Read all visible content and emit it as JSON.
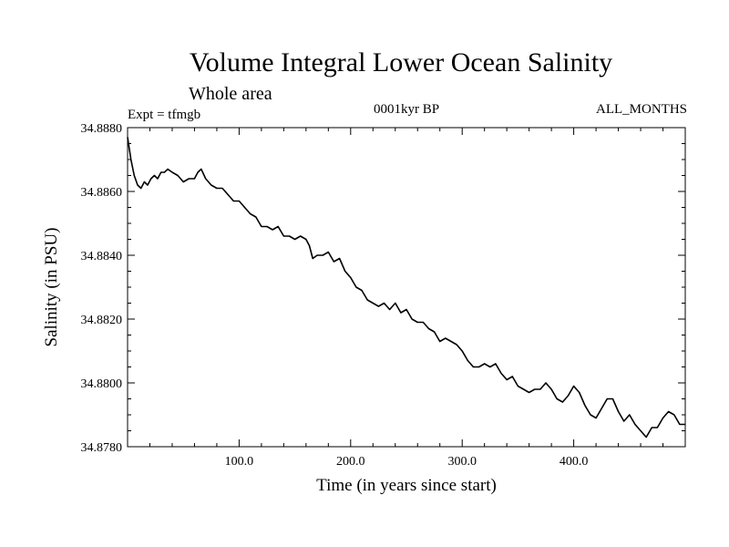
{
  "chart_data": {
    "type": "line",
    "title": "Volume Integral Lower Ocean Salinity",
    "subtitle": "Whole area",
    "left_label": "Expt = tfmgb",
    "center_label": "0001kyr BP",
    "right_label": "ALL_MONTHS",
    "xlabel": "Time (in years since start)",
    "ylabel": "Salinity (in PSU)",
    "xlim": [
      0,
      500
    ],
    "ylim": [
      34.878,
      34.888
    ],
    "x_ticks": [
      100,
      200,
      300,
      400
    ],
    "x_tick_labels": [
      "100.0",
      "200.0",
      "300.0",
      "400.0"
    ],
    "y_ticks": [
      34.878,
      34.88,
      34.882,
      34.884,
      34.886,
      34.888
    ],
    "y_tick_labels": [
      "34.8780",
      "34.8800",
      "34.8820",
      "34.8840",
      "34.8860",
      "34.8880"
    ],
    "grid": false,
    "series": [
      {
        "x": [
          0,
          3,
          6,
          9,
          12,
          15,
          18,
          21,
          24,
          27,
          30,
          33,
          36,
          40,
          45,
          50,
          55,
          60,
          63,
          66,
          70,
          75,
          80,
          85,
          90,
          95,
          100,
          105,
          110,
          115,
          120,
          125,
          130,
          135,
          140,
          145,
          150,
          155,
          160,
          163,
          166,
          170,
          175,
          180,
          185,
          190,
          195,
          200,
          205,
          210,
          215,
          220,
          225,
          230,
          235,
          240,
          245,
          250,
          255,
          260,
          265,
          270,
          275,
          280,
          285,
          290,
          295,
          300,
          305,
          310,
          315,
          320,
          325,
          330,
          335,
          340,
          345,
          350,
          355,
          360,
          365,
          370,
          375,
          380,
          385,
          390,
          395,
          400,
          405,
          410,
          415,
          420,
          425,
          430,
          435,
          440,
          445,
          450,
          455,
          460,
          465,
          470,
          475,
          480,
          485,
          490,
          495,
          500
        ],
        "values": [
          34.8877,
          34.887,
          34.8865,
          34.8862,
          34.8861,
          34.8863,
          34.8862,
          34.8864,
          34.8865,
          34.8864,
          34.8866,
          34.8866,
          34.8867,
          34.8866,
          34.8865,
          34.8863,
          34.8864,
          34.8864,
          34.8866,
          34.8867,
          34.8864,
          34.8862,
          34.8861,
          34.8861,
          34.8859,
          34.8857,
          34.8857,
          34.8855,
          34.8853,
          34.8852,
          34.8849,
          34.8849,
          34.8848,
          34.8849,
          34.8846,
          34.8846,
          34.8845,
          34.8846,
          34.8845,
          34.8843,
          34.8839,
          34.884,
          34.884,
          34.8841,
          34.8838,
          34.8839,
          34.8835,
          34.8833,
          34.883,
          34.8829,
          34.8826,
          34.8825,
          34.8824,
          34.8825,
          34.8823,
          34.8825,
          34.8822,
          34.8823,
          34.882,
          34.8819,
          34.8819,
          34.8817,
          34.8816,
          34.8813,
          34.8814,
          34.8813,
          34.8812,
          34.881,
          34.8807,
          34.8805,
          34.8805,
          34.8806,
          34.8805,
          34.8806,
          34.8803,
          34.8801,
          34.8802,
          34.8799,
          34.8798,
          34.8797,
          34.8798,
          34.8798,
          34.88,
          34.8798,
          34.8795,
          34.8794,
          34.8796,
          34.8799,
          34.8797,
          34.8793,
          34.879,
          34.8789,
          34.8792,
          34.8795,
          34.8795,
          34.8791,
          34.8788,
          34.879,
          34.8787,
          34.8785,
          34.8783,
          34.8786,
          34.8786,
          34.8789,
          34.8791,
          34.879,
          34.8787,
          34.8787
        ]
      }
    ]
  }
}
